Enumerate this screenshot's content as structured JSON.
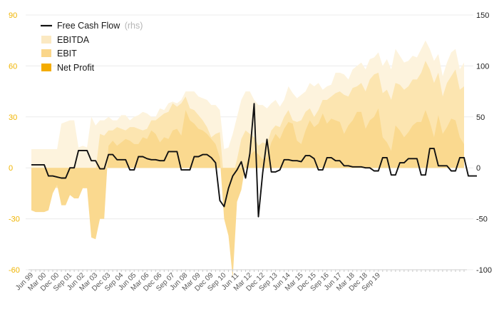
{
  "chart_data": {
    "type": "area",
    "left_axis": {
      "ticks": [
        90,
        60,
        30,
        0,
        -30,
        -60
      ],
      "range": [
        -60,
        90
      ],
      "color": "#f0b400"
    },
    "right_axis": {
      "ticks": [
        150,
        100,
        50,
        0,
        -50,
        -100
      ],
      "range": [
        -100,
        150
      ],
      "color": "#222222"
    },
    "x_labels": [
      "Jun 99",
      "Mar 00",
      "Dec 00",
      "Sep 01",
      "Jun 02",
      "Mar 03",
      "Dec 03",
      "Sep 04",
      "Jun 05",
      "Mar 06",
      "Dec 06",
      "Sep 07",
      "Jun 08",
      "Mar 09",
      "Dec 09",
      "Sep 10",
      "Jun 11",
      "Mar 12",
      "Dec 12",
      "Sep 13",
      "Jun 14",
      "Mar 15",
      "Dec 15",
      "Sep 16",
      "Jun 17",
      "Mar 18",
      "Dec 18",
      "Sep 19"
    ],
    "legend": [
      {
        "label": "Free Cash Flow",
        "suffix": "(rhs)",
        "kind": "line",
        "color": "#111111"
      },
      {
        "label": "EBITDA",
        "kind": "swatch",
        "color": "#fbe9c2"
      },
      {
        "label": "EBIT",
        "kind": "swatch",
        "color": "#fad68a"
      },
      {
        "label": "Net Profit",
        "kind": "swatch",
        "color": "#f4ac00"
      }
    ],
    "grid": true,
    "series": [
      {
        "name": "EBITDA",
        "axis": "left",
        "color": "#fdf3dd",
        "values": [
          11,
          11,
          11,
          11,
          11,
          11,
          11,
          26,
          27,
          28,
          28,
          12,
          13,
          12,
          30,
          25,
          28,
          28,
          30,
          28,
          28,
          31,
          31,
          28,
          30,
          31,
          33,
          32,
          30,
          30,
          35,
          34,
          38,
          39,
          38,
          40,
          45,
          45,
          45,
          42,
          41,
          40,
          37,
          37,
          34,
          11,
          12,
          20,
          30,
          40,
          45,
          45,
          40,
          37,
          37,
          35,
          38,
          40,
          36,
          40,
          48,
          44,
          41,
          43,
          45,
          50,
          48,
          50,
          46,
          48,
          49,
          56,
          56,
          55,
          52,
          58,
          60,
          62,
          58,
          64,
          65,
          68,
          60,
          64,
          58,
          70,
          66,
          62,
          63,
          66,
          65,
          70,
          75,
          70,
          63,
          67,
          54,
          62,
          68,
          70,
          58,
          62
        ]
      },
      {
        "name": "EBIT",
        "axis": "left",
        "color": "#fce5b0",
        "values": [
          -12,
          -12,
          -12,
          -12,
          -11,
          -11,
          -12,
          -10,
          -9,
          -8,
          -8,
          -7,
          -5,
          -5,
          -5,
          -2,
          20,
          19,
          22,
          22,
          24,
          23,
          22,
          24,
          24,
          23,
          22,
          23,
          28,
          28,
          30,
          32,
          33,
          38,
          36,
          38,
          42,
          35,
          34,
          31,
          28,
          24,
          18,
          20,
          21,
          -8,
          -8,
          -5,
          5,
          17,
          22,
          20,
          18,
          13,
          15,
          14,
          22,
          25,
          24,
          30,
          34,
          28,
          27,
          28,
          33,
          35,
          30,
          34,
          40,
          40,
          42,
          44,
          45,
          43,
          42,
          47,
          48,
          50,
          45,
          52,
          55,
          56,
          44,
          46,
          40,
          50,
          49,
          46,
          48,
          52,
          52,
          56,
          63,
          58,
          50,
          56,
          42,
          50,
          54,
          58,
          46,
          48
        ]
      },
      {
        "name": "Net Profit",
        "axis": "left",
        "color": "#fad98f",
        "values": [
          -25,
          -26,
          -26,
          -26,
          -25,
          -15,
          -10,
          -22,
          -22,
          -16,
          -18,
          -18,
          -12,
          -12,
          -41,
          -42,
          -30,
          -30,
          13,
          16,
          13,
          15,
          17,
          16,
          14,
          14,
          18,
          17,
          22,
          20,
          15,
          18,
          17,
          22,
          23,
          19,
          34,
          28,
          26,
          23,
          22,
          20,
          17,
          14,
          6,
          -30,
          -40,
          -65,
          -20,
          -13,
          2,
          7,
          10,
          8,
          5,
          6,
          15,
          20,
          17,
          23,
          27,
          26,
          16,
          14,
          22,
          28,
          24,
          26,
          32,
          26,
          29,
          28,
          27,
          20,
          25,
          28,
          33,
          33,
          23,
          28,
          30,
          35,
          18,
          15,
          10,
          25,
          22,
          18,
          21,
          25,
          27,
          27,
          34,
          27,
          18,
          31,
          20,
          24,
          29,
          28,
          18,
          14
        ]
      },
      {
        "name": "Free Cash Flow",
        "axis": "right",
        "color": "#111111",
        "values": [
          3,
          3,
          3,
          3,
          -8,
          -8,
          -9,
          -10,
          -10,
          0,
          0,
          17,
          17,
          17,
          7,
          7,
          -1,
          -1,
          13,
          13,
          8,
          8,
          8,
          -2,
          -2,
          11,
          11,
          9,
          8,
          8,
          7,
          7,
          16,
          16,
          16,
          -2,
          -2,
          -2,
          11,
          11,
          13,
          13,
          10,
          5,
          -32,
          -38,
          -20,
          -8,
          -2,
          6,
          -10,
          14,
          63,
          -48,
          -5,
          28,
          -4,
          -4,
          -2,
          8,
          8,
          7,
          7,
          6,
          12,
          12,
          9,
          -2,
          -2,
          10,
          10,
          7,
          7,
          2,
          2,
          1,
          1,
          1,
          0,
          0,
          -3,
          -3,
          10,
          10,
          -7,
          -7,
          5,
          5,
          9,
          9,
          9,
          -7,
          -7,
          19,
          19,
          2,
          2,
          2,
          -3,
          -3,
          10,
          10,
          -8,
          -8,
          -8
        ]
      }
    ]
  }
}
